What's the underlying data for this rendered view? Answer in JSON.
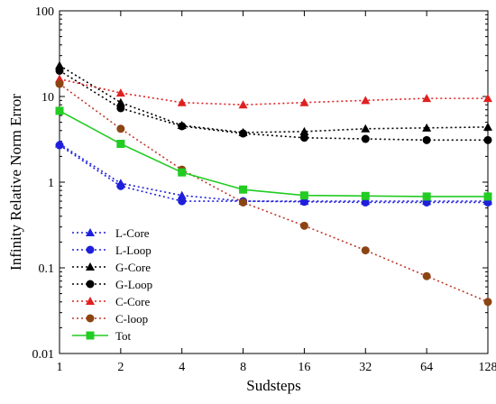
{
  "chart_data": {
    "type": "line",
    "title": "",
    "xlabel": "Sudsteps",
    "ylabel": "Infinity Relative Norm Error",
    "x_scale": "log2",
    "y_scale": "log10",
    "x": [
      1,
      2,
      4,
      8,
      16,
      32,
      64,
      128
    ],
    "x_tick_labels": [
      "1",
      "2",
      "4",
      "8",
      "16",
      "32",
      "64",
      "128"
    ],
    "y_ticks": [
      0.01,
      0.1,
      1,
      10,
      100
    ],
    "y_tick_labels": [
      "0.01",
      "0.1",
      "1",
      "10",
      "100"
    ],
    "xlim": [
      1,
      128
    ],
    "ylim": [
      0.01,
      100
    ],
    "grid": false,
    "legend_position": "lower-left",
    "series": [
      {
        "name": "L-Core",
        "color": "#1f1fdb",
        "marker": "triangle",
        "line_style": "dotted",
        "values": [
          2.8,
          0.97,
          0.7,
          0.6,
          0.6,
          0.6,
          0.6,
          0.6
        ]
      },
      {
        "name": "L-Loop",
        "color": "#1f1fdb",
        "marker": "circle",
        "line_style": "dotted",
        "values": [
          2.7,
          0.9,
          0.6,
          0.6,
          0.59,
          0.58,
          0.58,
          0.58
        ]
      },
      {
        "name": "G-Core",
        "color": "#000000",
        "marker": "triangle",
        "line_style": "dotted",
        "values": [
          23,
          8.5,
          4.6,
          3.8,
          3.9,
          4.2,
          4.3,
          4.4
        ]
      },
      {
        "name": "G-Loop",
        "color": "#000000",
        "marker": "circle",
        "line_style": "dotted",
        "values": [
          20,
          7.3,
          4.5,
          3.7,
          3.3,
          3.2,
          3.1,
          3.1
        ]
      },
      {
        "name": "C-Core",
        "color": "#e02020",
        "marker": "triangle",
        "line_style": "dotted",
        "values": [
          16,
          11,
          8.5,
          8.0,
          8.5,
          9.0,
          9.5,
          9.5
        ]
      },
      {
        "name": "C-loop",
        "color": "#c0392b",
        "marker_color": "#8b4513",
        "marker": "circle",
        "line_style": "dotted",
        "values": [
          14,
          4.2,
          1.4,
          0.58,
          0.31,
          0.16,
          0.08,
          0.04
        ]
      },
      {
        "name": "Tot",
        "color": "#22cc22",
        "marker": "square",
        "line_style": "solid",
        "values": [
          6.8,
          2.8,
          1.3,
          0.82,
          0.7,
          0.69,
          0.68,
          0.68
        ]
      }
    ]
  }
}
